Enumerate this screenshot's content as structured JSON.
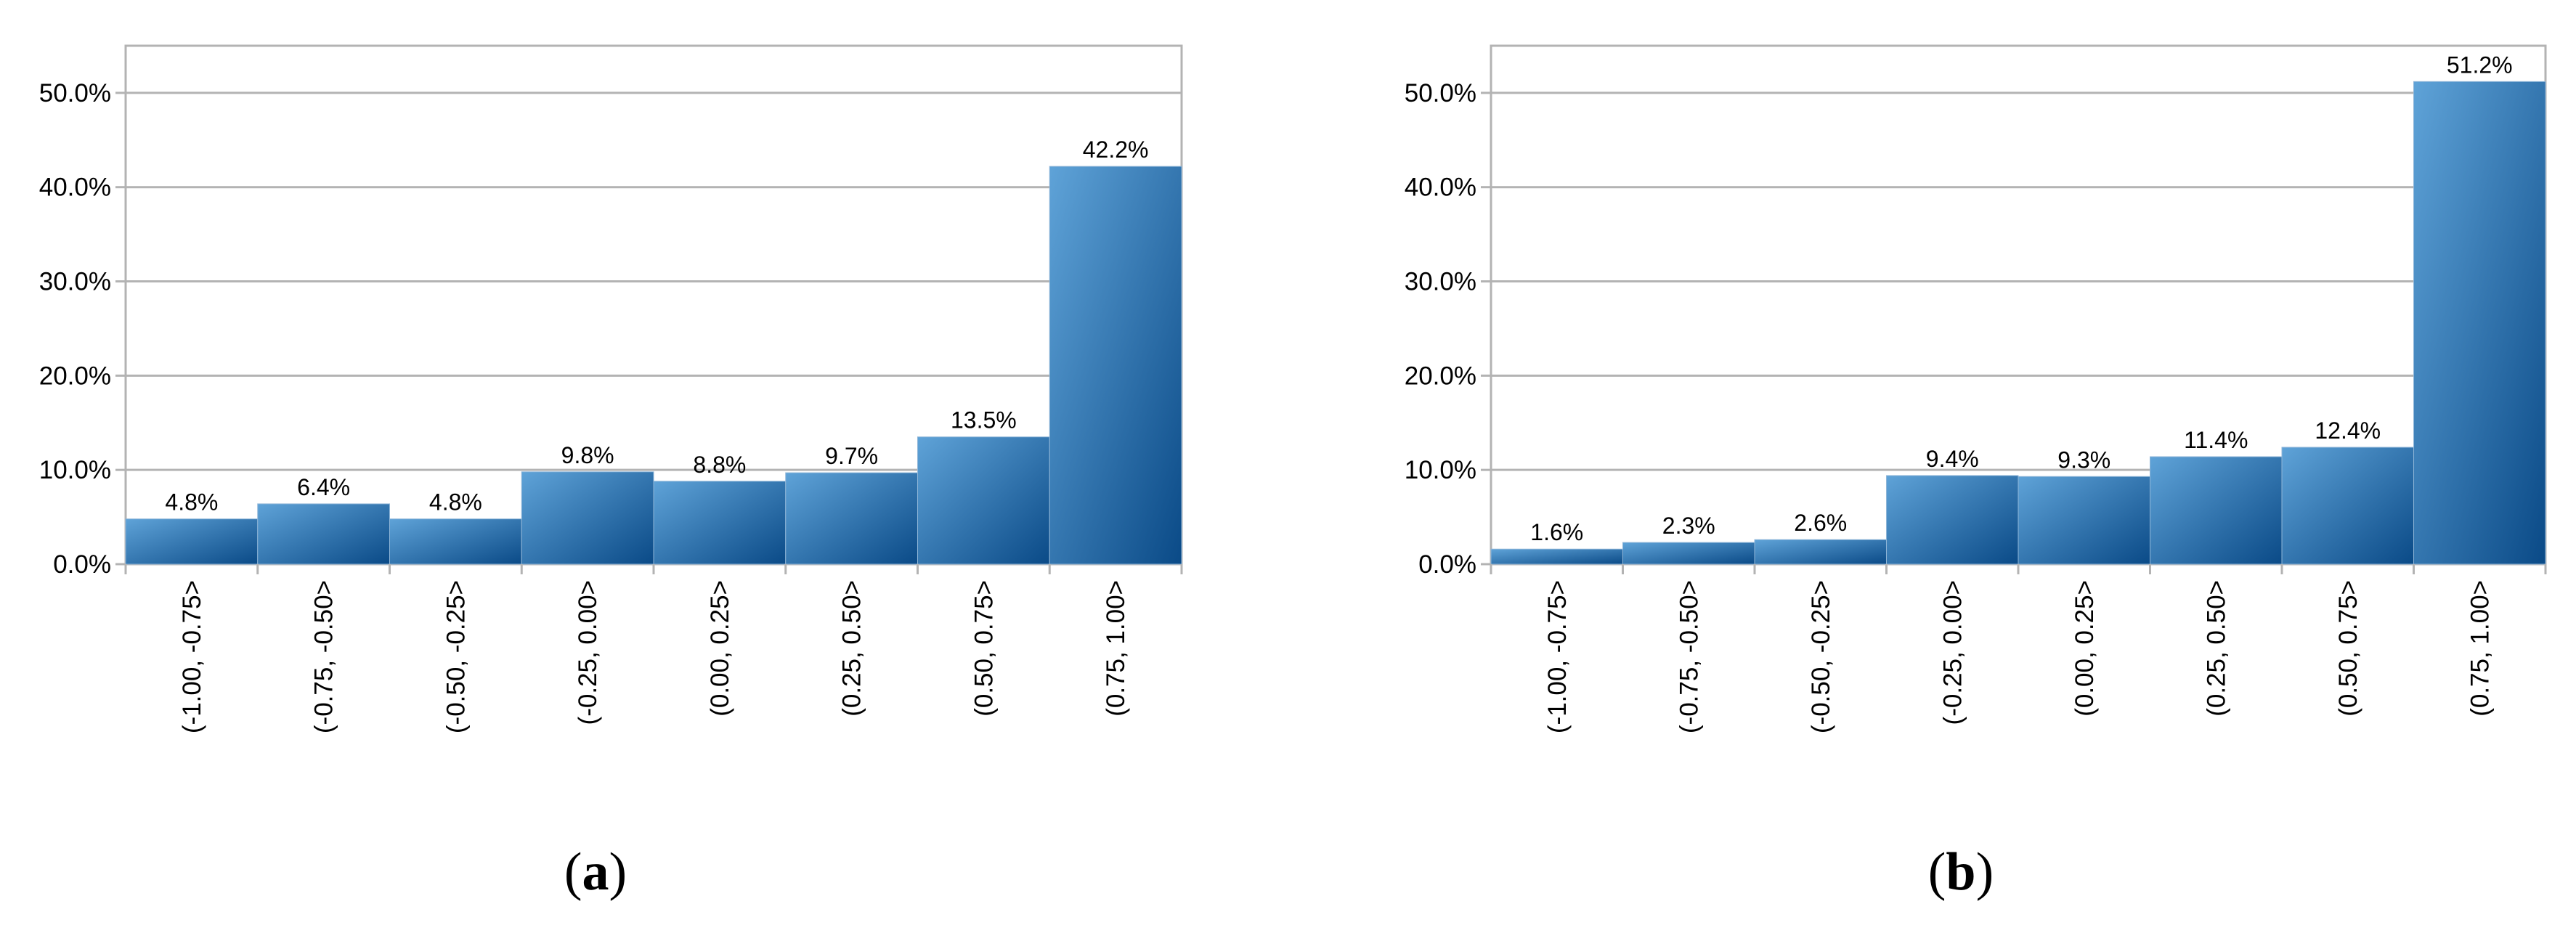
{
  "chart_data": [
    {
      "type": "bar",
      "panel_label": "a",
      "categories": [
        "(-1.00, -0.75>",
        "(-0.75, -0.50>",
        "(-0.50, -0.25>",
        "(-0.25, 0.00>",
        "(0.00, 0.25>",
        "(0.25, 0.50>",
        "(0.50, 0.75>",
        "(0.75, 1.00>"
      ],
      "values": [
        4.8,
        6.4,
        4.8,
        9.8,
        8.8,
        9.7,
        13.5,
        42.2
      ],
      "value_labels": [
        "4.8%",
        "6.4%",
        "4.8%",
        "9.8%",
        "8.8%",
        "9.7%",
        "13.5%",
        "42.2%"
      ],
      "yticks": [
        "0.0%",
        "10.0%",
        "20.0%",
        "30.0%",
        "40.0%",
        "50.0%"
      ],
      "ylim": [
        0,
        55
      ],
      "grid": true,
      "bar_color": "#2e78b7"
    },
    {
      "type": "bar",
      "panel_label": "b",
      "categories": [
        "(-1.00, -0.75>",
        "(-0.75, -0.50>",
        "(-0.50, -0.25>",
        "(-0.25, 0.00>",
        "(0.00, 0.25>",
        "(0.25, 0.50>",
        "(0.50, 0.75>",
        "(0.75, 1.00>"
      ],
      "values": [
        1.6,
        2.3,
        2.6,
        9.4,
        9.3,
        11.4,
        12.4,
        51.2
      ],
      "value_labels": [
        "1.6%",
        "2.3%",
        "2.6%",
        "9.4%",
        "9.3%",
        "11.4%",
        "12.4%",
        "51.2%"
      ],
      "yticks": [
        "0.0%",
        "10.0%",
        "20.0%",
        "30.0%",
        "40.0%",
        "50.0%"
      ],
      "ylim": [
        0,
        55
      ],
      "grid": true,
      "bar_color": "#2e78b7"
    }
  ]
}
